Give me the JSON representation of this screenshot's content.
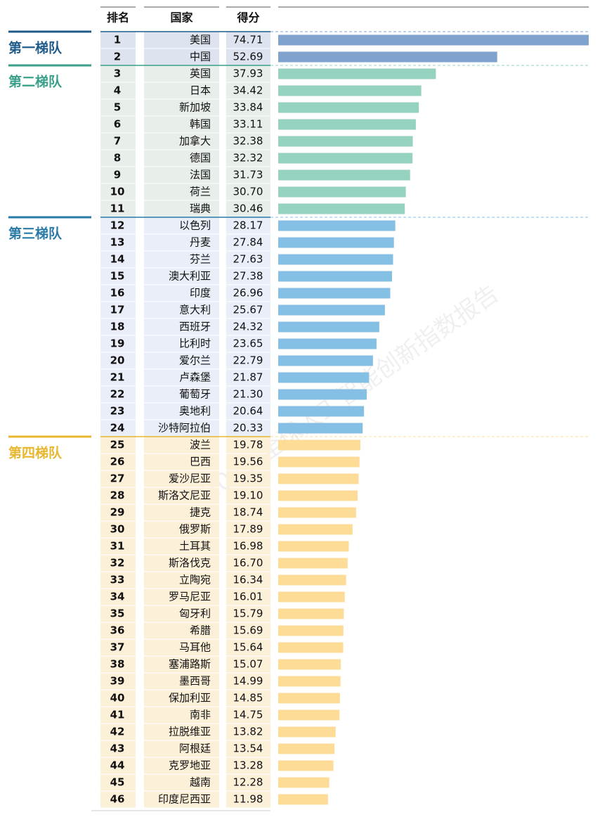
{
  "chart_data": {
    "type": "bar",
    "headers": [
      "排名",
      "国家",
      "得分"
    ],
    "watermark": "2023 全球人工智能创新指数报告",
    "tiers": [
      {
        "name": "第一梯队",
        "text_color": "#1f5c8b",
        "color": "#7fa3cc",
        "cell_color": "#dde3ef",
        "ranks": [
          1,
          2
        ],
        "countries": [
          "美国",
          "中国"
        ],
        "values": [
          74.71,
          52.69
        ],
        "value_labels": [
          "74.71",
          "52.69"
        ]
      },
      {
        "name": "第二梯队",
        "text_color": "#3aa08a",
        "color": "#96d2c0",
        "cell_color": "#e8eeea",
        "ranks": [
          3,
          4,
          5,
          6,
          7,
          8,
          9,
          10,
          11
        ],
        "countries": [
          "英国",
          "日本",
          "新加坡",
          "韩国",
          "加拿大",
          "德国",
          "法国",
          "荷兰",
          "瑞典"
        ],
        "values": [
          37.93,
          34.42,
          33.84,
          33.11,
          32.38,
          32.32,
          31.73,
          30.7,
          30.46
        ],
        "value_labels": [
          "37.93",
          "34.42",
          "33.84",
          "33.11",
          "32.38",
          "32.32",
          "31.73",
          "30.70",
          "30.46"
        ]
      },
      {
        "name": "第三梯队",
        "text_color": "#2a7aa8",
        "color": "#84c0e3",
        "cell_color": "#e9eef8",
        "ranks": [
          12,
          13,
          14,
          15,
          16,
          17,
          18,
          19,
          20,
          21,
          22,
          23,
          24
        ],
        "countries": [
          "以色列",
          "丹麦",
          "芬兰",
          "澳大利亚",
          "印度",
          "意大利",
          "西班牙",
          "比利时",
          "爱尔兰",
          "卢森堡",
          "葡萄牙",
          "奥地利",
          "沙特阿拉伯"
        ],
        "values": [
          28.17,
          27.84,
          27.63,
          27.38,
          26.96,
          25.67,
          24.32,
          23.65,
          22.79,
          21.87,
          21.3,
          20.64,
          20.33
        ],
        "value_labels": [
          "28.17",
          "27.84",
          "27.63",
          "27.38",
          "26.96",
          "25.67",
          "24.32",
          "23.65",
          "22.79",
          "21.87",
          "21.30",
          "20.64",
          "20.33"
        ]
      },
      {
        "name": "第四梯队",
        "text_color": "#e8b62f",
        "color": "#fddc98",
        "cell_color": "#fdf0d8",
        "ranks": [
          25,
          26,
          27,
          28,
          29,
          30,
          31,
          32,
          33,
          34,
          35,
          36,
          37,
          38,
          39,
          40,
          41,
          42,
          43,
          44,
          45,
          46
        ],
        "countries": [
          "波兰",
          "巴西",
          "爱沙尼亚",
          "斯洛文尼亚",
          "捷克",
          "俄罗斯",
          "土耳其",
          "斯洛伐克",
          "立陶宛",
          "罗马尼亚",
          "匈牙利",
          "希腊",
          "马耳他",
          "塞浦路斯",
          "墨西哥",
          "保加利亚",
          "南非",
          "拉脱维亚",
          "阿根廷",
          "克罗地亚",
          "越南",
          "印度尼西亚"
        ],
        "values": [
          19.78,
          19.56,
          19.35,
          19.1,
          18.74,
          17.89,
          16.98,
          16.7,
          16.34,
          16.01,
          15.79,
          15.69,
          15.64,
          15.07,
          14.99,
          14.85,
          14.75,
          13.82,
          13.54,
          13.28,
          12.28,
          11.98
        ],
        "value_labels": [
          "19.78",
          "19.56",
          "19.35",
          "19.10",
          "18.74",
          "17.89",
          "16.98",
          "16.70",
          "16.34",
          "16.01",
          "15.79",
          "15.69",
          "15.64",
          "15.07",
          "14.99",
          "14.85",
          "14.75",
          "13.82",
          "13.54",
          "13.28",
          "12.28",
          "11.98"
        ]
      }
    ]
  }
}
